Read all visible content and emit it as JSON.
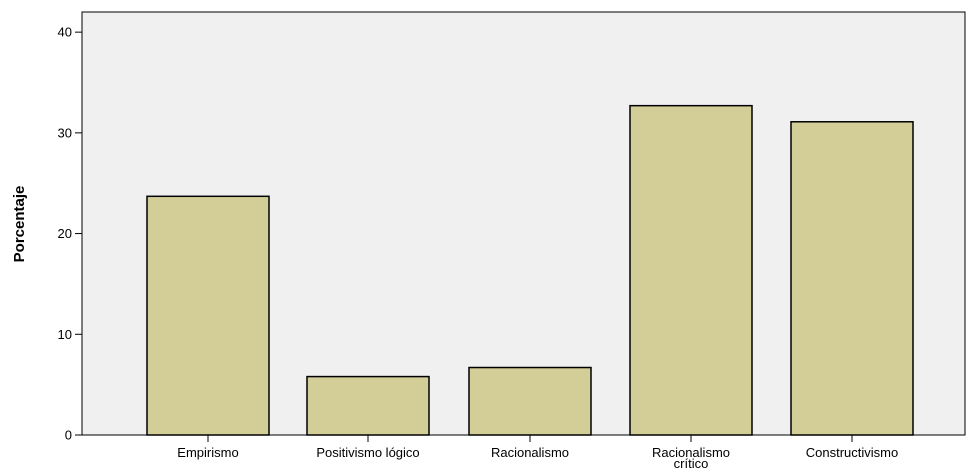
{
  "chart_data": {
    "type": "bar",
    "ylabel": "Porcentaje",
    "xlabel": "",
    "categories": [
      "Empirismo",
      "Positivismo lógico",
      "Racionalismo",
      "Racionalismo crítico",
      "Constructivismo"
    ],
    "category_lines": [
      [
        "Empirismo"
      ],
      [
        "Positivismo lógico"
      ],
      [
        "Racionalismo"
      ],
      [
        "Racionalismo",
        "crítico"
      ],
      [
        "Constructivismo"
      ]
    ],
    "values": [
      23.7,
      5.8,
      6.7,
      32.7,
      31.1
    ],
    "yticks": [
      "0",
      "10",
      "20",
      "30",
      "40"
    ],
    "ylim": [
      0,
      42
    ],
    "grid": false,
    "colors": {
      "plot_background": "#f0f0f0",
      "bar_fill": "#d3ce97",
      "bar_stroke": "#000000",
      "axis": "#000000"
    }
  }
}
